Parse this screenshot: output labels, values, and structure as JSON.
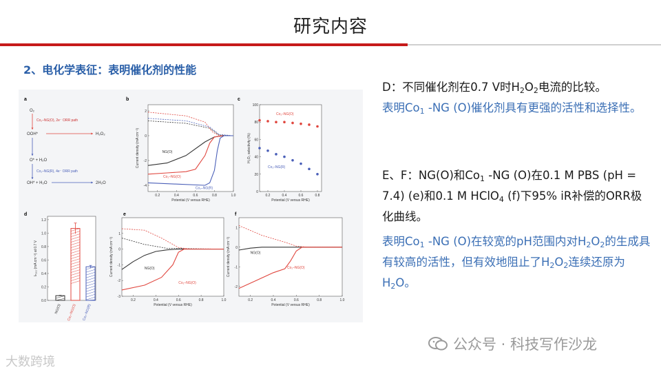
{
  "page": {
    "title": "研究内容",
    "section_heading": "2、电化学表征：表明催化剂的性能"
  },
  "colors": {
    "accent_red": "#c61a1a",
    "text_blue": "#3b6fb5",
    "black_curve": "#333333",
    "red_curve": "#e0463e",
    "blue_curve": "#4a5fb8"
  },
  "text": {
    "d_prefix": "D：不同催化剂在0.7 V时H",
    "d_sub1": "2",
    "d_mid": "O",
    "d_sub2": "2",
    "d_suffix": "电流的比较。",
    "d_blue_1": "表明Co",
    "d_blue_sub": "1",
    "d_blue_2": " -NG (O)催化剂具有更强的活性和选择性。",
    "ef_1": "E、F：NG(O)和Co",
    "ef_sub": "1",
    "ef_2": " -NG (O)在0.1 M PBS (pH = 7.4) (e)和0.1 M HClO",
    "ef_sub2": "4",
    "ef_3": " (f)下95% iR补偿的ORR极化曲线。",
    "ef_blue_1": "表明Co",
    "ef_blue_sub1": "1",
    "ef_blue_2": " -NG (O)在较宽的pH范围内对H",
    "ef_blue_sub2": "2",
    "ef_blue_3": "O",
    "ef_blue_sub3": "2",
    "ef_blue_4": "的生成具有较高的活性，但有效地阻止了H",
    "ef_blue_sub4": "2",
    "ef_blue_5": "O",
    "ef_blue_sub5": "2",
    "ef_blue_6": "连续还原为H",
    "ef_blue_sub6": "2",
    "ef_blue_7": "O。"
  },
  "watermarks": {
    "left": "大数跨境",
    "right": "公众号 · 科技写作沙龙"
  },
  "figure": {
    "panel_labels": [
      "a",
      "b",
      "c",
      "d",
      "e",
      "f"
    ],
    "scheme": {
      "o2": "O₂",
      "path_2e": "Co₁–NG(O), 2e⁻ ORR path",
      "ooh": "OOH*",
      "h2o2": "H₂O₂",
      "o_h2o": "O* + H₂O",
      "path_4e": "Co₁–NG(R), 4e⁻ ORR path",
      "oh_h2o": "OH* + H₂O",
      "two_h2o": "2H₂O"
    },
    "xlabel": "Potential (V versus RHE)",
    "ylabel_cd": "Current density (mA cm⁻²)",
    "ylabel_sel": "H₂O₂ selectivity (%)",
    "ylabel_d": "Iₕ₂ₒ₂ (mA cm⁻²) at 0.7 V",
    "legend_ngo": "NG(O)",
    "legend_co_o": "Co₁–NG(O)",
    "legend_co_r": "Co₁–NG(R)"
  },
  "chart_data": [
    {
      "type": "line",
      "panel": "b",
      "xlabel": "Potential (V versus RHE)",
      "ylabel": "Current density (mA cm⁻²)",
      "xlim": [
        0.1,
        1.0
      ],
      "ylim": [
        -4.5,
        2.5
      ],
      "xticks": [
        0.2,
        0.4,
        0.6,
        0.8,
        1.0
      ],
      "yticks": [
        -4,
        -2,
        0,
        2
      ],
      "series": [
        {
          "name": "NG(O)",
          "color": "#333333",
          "x": [
            0.1,
            0.3,
            0.5,
            0.7,
            0.8,
            0.9,
            1.0
          ],
          "y": [
            -2.4,
            -2.2,
            -1.6,
            -0.5,
            -0.1,
            0,
            0
          ]
        },
        {
          "name": "Co₁–NG(O)",
          "color": "#e0463e",
          "x": [
            0.1,
            0.3,
            0.5,
            0.6,
            0.7,
            0.75,
            0.8,
            0.9,
            1.0
          ],
          "y": [
            -3.1,
            -3.0,
            -2.9,
            -2.7,
            -1.6,
            -0.6,
            -0.1,
            0,
            0
          ]
        },
        {
          "name": "Co₁–NG(R)",
          "color": "#4a5fb8",
          "x": [
            0.1,
            0.4,
            0.7,
            0.75,
            0.8,
            0.83,
            0.86,
            0.9,
            1.0
          ],
          "y": [
            -3.8,
            -3.9,
            -4.0,
            -3.8,
            -2.8,
            -1.2,
            -0.2,
            0,
            0
          ]
        }
      ]
    },
    {
      "type": "scatter",
      "panel": "c",
      "xlabel": "Potential (V versus RHE)",
      "ylabel": "H₂O₂ selectivity (%)",
      "xlim": [
        0.1,
        0.85
      ],
      "ylim": [
        0,
        100
      ],
      "xticks": [
        0.2,
        0.4,
        0.6,
        0.8
      ],
      "yticks": [
        0,
        20,
        40,
        60,
        80,
        100
      ],
      "series": [
        {
          "name": "Co₁–NG(O)",
          "color": "#e0463e",
          "x": [
            0.1,
            0.2,
            0.3,
            0.4,
            0.5,
            0.6,
            0.7,
            0.8
          ],
          "y": [
            82,
            81,
            80,
            80,
            79,
            78,
            77,
            75
          ]
        },
        {
          "name": "Co₁–NG(R)",
          "color": "#4a5fb8",
          "x": [
            0.1,
            0.2,
            0.3,
            0.4,
            0.5,
            0.6,
            0.7,
            0.8
          ],
          "y": [
            50,
            47,
            43,
            40,
            36,
            32,
            26,
            20
          ]
        }
      ]
    },
    {
      "type": "bar",
      "panel": "d",
      "categories": [
        "NG(O)",
        "Co₁–NG(O)",
        "Co₁–NG(R)"
      ],
      "values": [
        0.07,
        1.07,
        0.5
      ],
      "errors": [
        0.005,
        0.08,
        0.02
      ],
      "colors": [
        "#333333",
        "#e0463e",
        "#4a5fb8"
      ],
      "ylabel": "Iₕ₂ₒ₂ (mA cm⁻²) at 0.7 V",
      "ylim": [
        0,
        1.25
      ],
      "yticks": [
        0.0,
        0.2,
        0.4,
        0.6,
        0.8,
        1.0,
        1.2
      ]
    },
    {
      "type": "line",
      "panel": "e",
      "xlabel": "Potential (V versus RHE)",
      "ylabel": "Current density (mA cm⁻²)",
      "xlim": [
        0.1,
        1.0
      ],
      "ylim": [
        -3,
        2
      ],
      "xticks": [
        0.2,
        0.4,
        0.6,
        0.8,
        1.0
      ],
      "yticks": [
        -3,
        -2,
        -1,
        0,
        1
      ],
      "series": [
        {
          "name": "NG(O)",
          "color": "#333333",
          "x": [
            0.1,
            0.2,
            0.3,
            0.4,
            0.5,
            0.6,
            1.0
          ],
          "y": [
            -1.3,
            -0.8,
            -0.4,
            -0.15,
            -0.05,
            0,
            0
          ]
        },
        {
          "name": "Co₁–NG(O)",
          "color": "#e0463e",
          "x": [
            0.1,
            0.3,
            0.45,
            0.55,
            0.6,
            0.65,
            0.7,
            1.0
          ],
          "y": [
            -2.6,
            -2.3,
            -1.8,
            -1.0,
            -0.2,
            0,
            0,
            0
          ]
        }
      ]
    },
    {
      "type": "line",
      "panel": "f",
      "xlabel": "Potential (V versus RHE)",
      "ylabel": "Current density (mA cm⁻²)",
      "xlim": [
        0.1,
        1.0
      ],
      "ylim": [
        -2.5,
        1.5
      ],
      "xticks": [
        0.2,
        0.4,
        0.6,
        0.8,
        1.0
      ],
      "yticks": [
        -2,
        -1,
        0,
        1
      ],
      "series": [
        {
          "name": "NG(O)",
          "color": "#333333",
          "x": [
            0.1,
            0.2,
            0.3,
            0.5,
            1.0
          ],
          "y": [
            -0.15,
            -0.05,
            0,
            0,
            0
          ]
        },
        {
          "name": "Co₁–NG(O)",
          "color": "#e0463e",
          "x": [
            0.1,
            0.25,
            0.4,
            0.5,
            0.55,
            0.6,
            0.65,
            1.0
          ],
          "y": [
            -2.1,
            -1.7,
            -1.3,
            -1.1,
            -0.7,
            -0.2,
            0,
            0
          ]
        }
      ]
    }
  ]
}
